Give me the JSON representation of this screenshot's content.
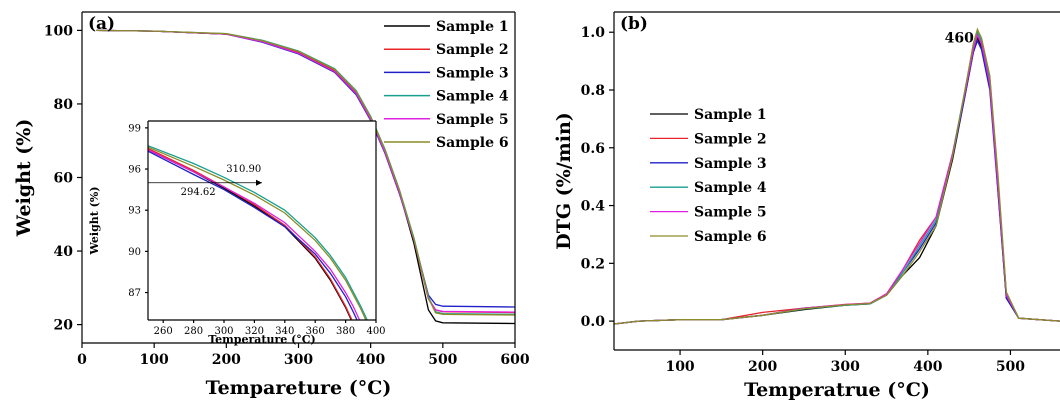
{
  "colors": {
    "Sample 1": "#000000",
    "Sample 2": "#e8242a",
    "Sample 3": "#2020c8",
    "Sample 4": "#17a090",
    "Sample 5": "#e020e0",
    "Sample 6": "#8c8c28"
  },
  "chart_data": [
    {
      "id": "a",
      "type": "line",
      "panel_label": "(a)",
      "xlabel": "Tempareture (°C)",
      "ylabel": "Weight (%)",
      "xlim": [
        0,
        600
      ],
      "ylim": [
        15,
        105
      ],
      "xticks": [
        0,
        100,
        200,
        300,
        400,
        500,
        600
      ],
      "yticks": [
        20,
        40,
        60,
        80,
        100
      ],
      "legend_position": "top-right",
      "series": [
        {
          "name": "Sample 1",
          "x": [
            20,
            100,
            200,
            250,
            300,
            350,
            380,
            400,
            420,
            440,
            460,
            470,
            480,
            490,
            500,
            600
          ],
          "y": [
            100,
            99.8,
            99,
            97,
            94,
            89,
            83,
            76,
            67,
            56,
            42,
            33,
            24,
            21,
            20.5,
            20.3
          ]
        },
        {
          "name": "Sample 2",
          "x": [
            20,
            100,
            200,
            250,
            300,
            350,
            380,
            400,
            420,
            440,
            460,
            470,
            480,
            490,
            500,
            600
          ],
          "y": [
            100,
            99.8,
            99,
            97,
            94,
            89,
            83,
            76,
            67,
            56,
            43,
            35,
            27,
            24,
            23.5,
            23.3
          ]
        },
        {
          "name": "Sample 3",
          "x": [
            20,
            100,
            200,
            250,
            300,
            350,
            380,
            400,
            420,
            440,
            460,
            470,
            480,
            490,
            500,
            600
          ],
          "y": [
            100,
            99.8,
            99,
            96.8,
            93.6,
            88.6,
            82.5,
            75.5,
            66.5,
            55.5,
            43,
            35.5,
            28,
            25.5,
            25,
            24.8
          ]
        },
        {
          "name": "Sample 4",
          "x": [
            20,
            100,
            200,
            250,
            300,
            350,
            380,
            400,
            420,
            440,
            460,
            470,
            480,
            490,
            500,
            600
          ],
          "y": [
            100,
            99.8,
            99.1,
            97.3,
            94.4,
            89.6,
            83.6,
            76.6,
            67.6,
            56.6,
            43.5,
            35.5,
            27.5,
            23.5,
            23,
            22.8
          ]
        },
        {
          "name": "Sample 5",
          "x": [
            20,
            100,
            200,
            250,
            300,
            350,
            380,
            400,
            420,
            440,
            460,
            470,
            480,
            490,
            500,
            600
          ],
          "y": [
            100,
            99.8,
            99,
            96.9,
            93.8,
            88.8,
            82.8,
            75.8,
            66.8,
            55.8,
            43,
            35,
            27,
            24,
            23.6,
            23.4
          ]
        },
        {
          "name": "Sample 6",
          "x": [
            20,
            100,
            200,
            250,
            300,
            350,
            380,
            400,
            420,
            440,
            460,
            470,
            480,
            490,
            500,
            600
          ],
          "y": [
            100,
            99.8,
            99.1,
            97.2,
            94.3,
            89.4,
            83.4,
            76.4,
            67.4,
            56.4,
            43.2,
            35.2,
            27.2,
            23.2,
            22.8,
            22.6
          ]
        }
      ]
    },
    {
      "id": "a-inset",
      "type": "line",
      "xlabel": "Temperature (°C)",
      "ylabel": "Weight (%)",
      "xlim": [
        250,
        400
      ],
      "ylim": [
        85,
        99.5
      ],
      "xticks": [
        260,
        280,
        300,
        320,
        340,
        360,
        380,
        400
      ],
      "yticks": [
        87,
        90,
        93,
        96,
        99
      ],
      "annotations": [
        {
          "text": "294.62",
          "x": 283,
          "y": 94.1
        },
        {
          "text": "310.90",
          "x": 313,
          "y": 95.8
        }
      ],
      "series": [
        {
          "name": "Sample 1",
          "x": [
            250,
            280,
            300,
            320,
            340,
            360,
            370,
            380,
            385,
            390
          ],
          "y": [
            97.4,
            95.8,
            94.6,
            93.3,
            91.8,
            89.5,
            87.9,
            85.9,
            84.7,
            83.5
          ]
        },
        {
          "name": "Sample 2",
          "x": [
            250,
            280,
            300,
            320,
            340,
            360,
            370,
            380,
            385,
            390
          ],
          "y": [
            97.5,
            95.9,
            94.7,
            93.4,
            91.9,
            89.6,
            88.0,
            86.0,
            84.8,
            83.6
          ]
        },
        {
          "name": "Sample 3",
          "x": [
            250,
            280,
            300,
            320,
            340,
            360,
            370,
            380,
            385,
            390,
            395
          ],
          "y": [
            97.3,
            95.6,
            94.5,
            93.2,
            91.8,
            89.8,
            88.4,
            86.7,
            85.6,
            84.4,
            83.0
          ]
        },
        {
          "name": "Sample 4",
          "x": [
            250,
            280,
            300,
            320,
            340,
            360,
            370,
            380,
            390,
            395,
            400
          ],
          "y": [
            97.7,
            96.4,
            95.4,
            94.3,
            93.0,
            91.0,
            89.7,
            88.1,
            86.0,
            84.8,
            83.4
          ]
        },
        {
          "name": "Sample 5",
          "x": [
            250,
            280,
            300,
            320,
            340,
            360,
            370,
            380,
            385,
            390,
            395
          ],
          "y": [
            97.4,
            95.8,
            94.7,
            93.5,
            92.1,
            90.0,
            88.7,
            87.0,
            86.0,
            84.8,
            83.5
          ]
        },
        {
          "name": "Sample 6",
          "x": [
            250,
            280,
            300,
            320,
            340,
            360,
            370,
            380,
            390,
            395,
            400
          ],
          "y": [
            97.6,
            96.2,
            95.2,
            94.1,
            92.8,
            90.8,
            89.5,
            87.9,
            85.8,
            84.6,
            83.2
          ]
        }
      ]
    },
    {
      "id": "b",
      "type": "line",
      "panel_label": "(b)",
      "xlabel": "Temperatrue (°C)",
      "ylabel": "DTG (%/min)",
      "xlim": [
        20,
        560
      ],
      "ylim": [
        -0.1,
        1.07
      ],
      "xticks": [
        100,
        200,
        300,
        400,
        500
      ],
      "yticks": [
        0.0,
        0.2,
        0.4,
        0.6,
        0.8,
        1.0
      ],
      "legend_position": "center-left",
      "annotations": [
        {
          "text": "460",
          "x": 438,
          "y": 0.965
        }
      ],
      "series": [
        {
          "name": "Sample 1",
          "x": [
            20,
            50,
            100,
            150,
            200,
            250,
            300,
            330,
            350,
            370,
            390,
            410,
            430,
            445,
            455,
            460,
            465,
            475,
            485,
            495,
            510,
            560
          ],
          "y": [
            -0.01,
            0.0,
            0.005,
            0.005,
            0.02,
            0.04,
            0.055,
            0.06,
            0.09,
            0.16,
            0.22,
            0.33,
            0.56,
            0.78,
            0.93,
            0.98,
            0.95,
            0.82,
            0.45,
            0.08,
            0.01,
            0.0
          ]
        },
        {
          "name": "Sample 2",
          "x": [
            20,
            50,
            100,
            150,
            200,
            250,
            300,
            330,
            350,
            370,
            390,
            410,
            430,
            445,
            455,
            460,
            465,
            475,
            485,
            495,
            510,
            560
          ],
          "y": [
            -0.01,
            0.0,
            0.005,
            0.005,
            0.03,
            0.045,
            0.058,
            0.062,
            0.095,
            0.18,
            0.28,
            0.36,
            0.58,
            0.79,
            0.94,
            0.99,
            0.96,
            0.83,
            0.47,
            0.09,
            0.01,
            0.0
          ]
        },
        {
          "name": "Sample 3",
          "x": [
            20,
            50,
            100,
            150,
            200,
            250,
            300,
            330,
            350,
            370,
            390,
            410,
            430,
            445,
            455,
            460,
            465,
            475,
            485,
            495,
            510,
            560
          ],
          "y": [
            -0.01,
            0.0,
            0.005,
            0.005,
            0.02,
            0.045,
            0.056,
            0.061,
            0.092,
            0.17,
            0.25,
            0.34,
            0.57,
            0.78,
            0.93,
            0.97,
            0.94,
            0.8,
            0.44,
            0.08,
            0.01,
            0.0
          ]
        },
        {
          "name": "Sample 4",
          "x": [
            20,
            50,
            100,
            150,
            200,
            250,
            300,
            330,
            350,
            370,
            390,
            410,
            430,
            445,
            455,
            460,
            465,
            475,
            485,
            495,
            510,
            560
          ],
          "y": [
            -0.01,
            0.0,
            0.005,
            0.005,
            0.02,
            0.042,
            0.055,
            0.06,
            0.09,
            0.17,
            0.26,
            0.35,
            0.58,
            0.8,
            0.95,
            1.0,
            0.97,
            0.84,
            0.48,
            0.1,
            0.01,
            0.0
          ]
        },
        {
          "name": "Sample 5",
          "x": [
            20,
            50,
            100,
            150,
            200,
            250,
            300,
            330,
            350,
            370,
            390,
            410,
            430,
            445,
            455,
            460,
            465,
            475,
            485,
            495,
            510,
            560
          ],
          "y": [
            -0.01,
            0.0,
            0.005,
            0.005,
            0.02,
            0.045,
            0.057,
            0.062,
            0.094,
            0.18,
            0.27,
            0.36,
            0.58,
            0.79,
            0.94,
            0.99,
            0.96,
            0.82,
            0.46,
            0.09,
            0.01,
            0.0
          ]
        },
        {
          "name": "Sample 6",
          "x": [
            20,
            50,
            100,
            150,
            200,
            250,
            300,
            330,
            350,
            370,
            390,
            410,
            430,
            445,
            455,
            460,
            465,
            475,
            485,
            495,
            510,
            560
          ],
          "y": [
            -0.01,
            0.0,
            0.005,
            0.005,
            0.02,
            0.043,
            0.056,
            0.061,
            0.09,
            0.16,
            0.24,
            0.33,
            0.57,
            0.8,
            0.96,
            1.01,
            0.98,
            0.85,
            0.5,
            0.1,
            0.01,
            0.0
          ]
        }
      ]
    }
  ]
}
